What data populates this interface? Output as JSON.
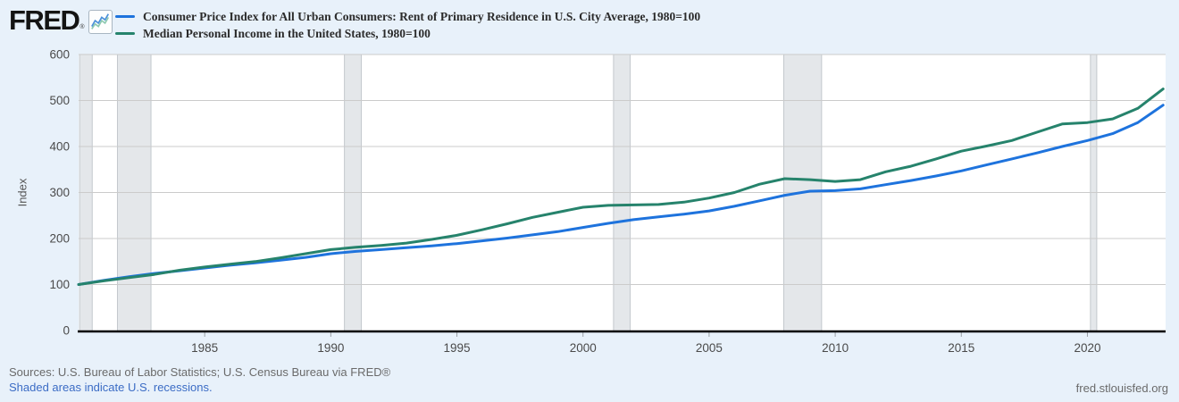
{
  "page": {
    "background": "#e8f1fa"
  },
  "header": {
    "logo_text": "FRED",
    "registered_mark": "®",
    "legend": [
      {
        "label": "Consumer Price Index for All Urban Consumers: Rent of Primary Residence in U.S. City Average, 1980=100",
        "color": "#1e73dd"
      },
      {
        "label": "Median Personal Income in the United States, 1980=100",
        "color": "#26836c"
      }
    ]
  },
  "footer": {
    "sources": "Sources: U.S. Bureau of Labor Statistics; U.S. Census Bureau via FRED®",
    "recession_note": "Shaded areas indicate U.S. recessions.",
    "site": "fred.stlouisfed.org"
  },
  "chart_data": {
    "type": "line",
    "title": "",
    "xlabel": "",
    "ylabel": "Index",
    "ylim": [
      0,
      600
    ],
    "yticks": [
      0,
      100,
      200,
      300,
      400,
      500,
      600
    ],
    "xlim": [
      1980,
      2023.1
    ],
    "xticks": [
      1985,
      1990,
      1995,
      2000,
      2005,
      2010,
      2015,
      2020
    ],
    "grid": "horizontal",
    "legend_position": "top-left",
    "x": [
      1980,
      1981,
      1982,
      1983,
      1984,
      1985,
      1986,
      1987,
      1988,
      1989,
      1990,
      1991,
      1992,
      1993,
      1994,
      1995,
      1996,
      1997,
      1998,
      1999,
      2000,
      2001,
      2002,
      2003,
      2004,
      2005,
      2006,
      2007,
      2008,
      2009,
      2010,
      2011,
      2012,
      2013,
      2014,
      2015,
      2016,
      2017,
      2018,
      2019,
      2020,
      2021,
      2022,
      2023
    ],
    "series": [
      {
        "name": "Consumer Price Index for All Urban Consumers: Rent of Primary Residence in U.S. City Average, 1980=100",
        "color": "#1e73dd",
        "values": [
          100,
          109,
          117,
          124,
          130,
          136,
          142,
          147,
          153,
          159,
          167,
          172,
          176,
          180,
          184,
          189,
          195,
          201,
          208,
          215,
          224,
          233,
          241,
          247,
          253,
          260,
          270,
          282,
          294,
          303,
          304,
          308,
          317,
          326,
          336,
          347,
          360,
          373,
          386,
          400,
          413,
          428,
          452,
          490
        ]
      },
      {
        "name": "Median Personal Income in the United States, 1980=100",
        "color": "#26836c",
        "values": [
          100,
          108,
          115,
          122,
          131,
          138,
          144,
          150,
          158,
          167,
          176,
          181,
          185,
          190,
          198,
          207,
          219,
          232,
          246,
          257,
          268,
          272,
          273,
          274,
          279,
          288,
          300,
          318,
          330,
          328,
          324,
          328,
          345,
          357,
          373,
          390,
          401,
          413,
          431,
          449,
          452,
          460,
          483,
          525
        ]
      }
    ],
    "recessions": [
      [
        1980.04,
        1980.54
      ],
      [
        1981.54,
        1982.87
      ],
      [
        1990.54,
        1991.21
      ],
      [
        2001.21,
        2001.87
      ],
      [
        2007.96,
        2009.46
      ],
      [
        2020.12,
        2020.37
      ]
    ],
    "colors": {
      "plot_background": "#ffffff",
      "gridline": "#cbcbcb",
      "recession_fill": "#e4e7ea",
      "recession_edge": "#c3c8cd",
      "axis_line": "#000000",
      "tick_label": "#4a4a4a"
    }
  }
}
